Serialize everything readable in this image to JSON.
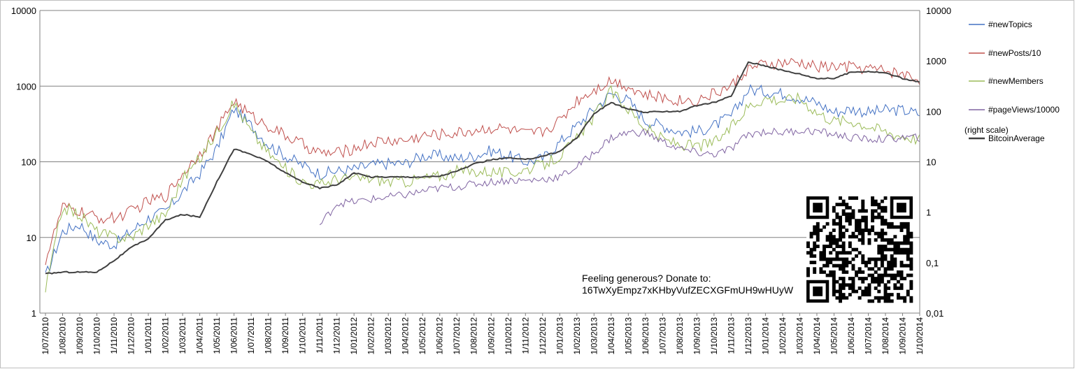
{
  "chart_data": {
    "type": "line",
    "left_axis": {
      "scale": "log",
      "ylim": [
        1,
        10000
      ],
      "ticks": [
        "1",
        "10",
        "100",
        "1000",
        "10000"
      ]
    },
    "right_axis": {
      "scale": "log",
      "ylim": [
        0.01,
        10000
      ],
      "ticks": [
        "0,01",
        "0,1",
        "1",
        "10",
        "100",
        "1000",
        "10000"
      ]
    },
    "gridlines": "horizontal at left-axis decades",
    "x_ticks": [
      "1/07/2010",
      "1/08/2010",
      "1/09/2010",
      "1/10/2010",
      "1/11/2010",
      "1/12/2010",
      "1/01/2011",
      "1/02/2011",
      "1/03/2011",
      "1/04/2011",
      "1/05/2011",
      "1/06/2011",
      "1/07/2011",
      "1/08/2011",
      "1/09/2011",
      "1/10/2011",
      "1/11/2011",
      "1/12/2011",
      "1/01/2012",
      "1/02/2012",
      "1/03/2012",
      "1/04/2012",
      "1/05/2012",
      "1/06/2012",
      "1/07/2012",
      "1/08/2012",
      "1/09/2012",
      "1/10/2012",
      "1/11/2012",
      "1/12/2012",
      "1/01/2013",
      "1/02/2013",
      "1/03/2013",
      "1/04/2013",
      "1/05/2013",
      "1/06/2013",
      "1/07/2013",
      "1/08/2013",
      "1/09/2013",
      "1/10/2013",
      "1/11/2013",
      "1/12/2013",
      "1/01/2014",
      "1/02/2014",
      "1/03/2014",
      "1/04/2014",
      "1/05/2014",
      "1/06/2014",
      "1/07/2014",
      "1/08/2014",
      "1/09/2014",
      "1/10/2014"
    ],
    "legend_position": "right",
    "right_scale_note": "(right scale)",
    "series": [
      {
        "name": "#newTopics",
        "color": "#4472C4",
        "axis": "left",
        "values": [
          3,
          12,
          15,
          9,
          8,
          12,
          18,
          22,
          40,
          70,
          150,
          500,
          300,
          170,
          120,
          90,
          70,
          75,
          80,
          90,
          95,
          95,
          120,
          120,
          110,
          120,
          140,
          120,
          100,
          110,
          180,
          300,
          500,
          800,
          650,
          350,
          300,
          250,
          250,
          300,
          400,
          900,
          850,
          800,
          700,
          600,
          450,
          500,
          450,
          480,
          480,
          430
        ]
      },
      {
        "name": "#newPosts/10",
        "color": "#C0504D",
        "axis": "left",
        "values": [
          5,
          25,
          22,
          18,
          18,
          22,
          30,
          35,
          70,
          130,
          260,
          650,
          400,
          300,
          220,
          170,
          130,
          130,
          150,
          180,
          190,
          190,
          220,
          230,
          240,
          260,
          280,
          270,
          230,
          250,
          350,
          650,
          900,
          1200,
          1000,
          750,
          700,
          650,
          650,
          800,
          1000,
          1700,
          1900,
          2000,
          2000,
          1800,
          1800,
          1800,
          1700,
          1600,
          1450,
          1200
        ]
      },
      {
        "name": "#newMembers",
        "color": "#9BBB59",
        "axis": "left",
        "values": [
          2,
          25,
          20,
          12,
          10,
          10,
          15,
          20,
          60,
          110,
          250,
          600,
          250,
          130,
          80,
          55,
          50,
          60,
          60,
          60,
          55,
          55,
          60,
          65,
          75,
          75,
          75,
          70,
          80,
          90,
          120,
          200,
          400,
          850,
          500,
          280,
          200,
          170,
          160,
          180,
          280,
          550,
          700,
          650,
          700,
          450,
          350,
          350,
          300,
          250,
          220,
          200
        ]
      },
      {
        "name": "#pageViews/10000",
        "color": "#8064A2",
        "axis": "right",
        "values": [
          null,
          null,
          null,
          null,
          null,
          null,
          null,
          null,
          null,
          null,
          null,
          null,
          null,
          null,
          null,
          null,
          0.55,
          1.5,
          1.6,
          1.8,
          2,
          2.2,
          2.6,
          3,
          3.2,
          3.6,
          4,
          4.3,
          4.2,
          4.5,
          5,
          8,
          15,
          30,
          38,
          38,
          25,
          18,
          15,
          14,
          18,
          35,
          40,
          38,
          42,
          40,
          35,
          30,
          28,
          28,
          30,
          30
        ]
      },
      {
        "name": "BitcoinAverage",
        "color": "#404040",
        "axis": "right",
        "values": [
          0.06,
          0.065,
          0.065,
          0.065,
          0.11,
          0.2,
          0.3,
          0.7,
          0.9,
          0.8,
          4,
          18,
          14,
          10,
          6,
          4,
          3,
          3.5,
          6,
          5,
          5,
          5,
          5,
          5.2,
          6.5,
          9,
          11,
          12,
          11,
          13,
          16,
          30,
          90,
          150,
          110,
          95,
          100,
          100,
          130,
          150,
          200,
          950,
          800,
          650,
          550,
          450,
          450,
          600,
          620,
          580,
          450,
          380
        ]
      }
    ]
  },
  "legend": {
    "items": [
      "#newTopics",
      "#newPosts/10",
      "#newMembers",
      "#pageViews/10000",
      "BitcoinAverage"
    ],
    "right_scale_label": "(right scale)"
  },
  "donation": {
    "line1": "Feeling generous? Donate to:",
    "line2": "16TwXyEmpz7xKHbyVufZECXGFmUH9wHUyW"
  },
  "qr_code": {
    "description": "qr-code-icon"
  }
}
